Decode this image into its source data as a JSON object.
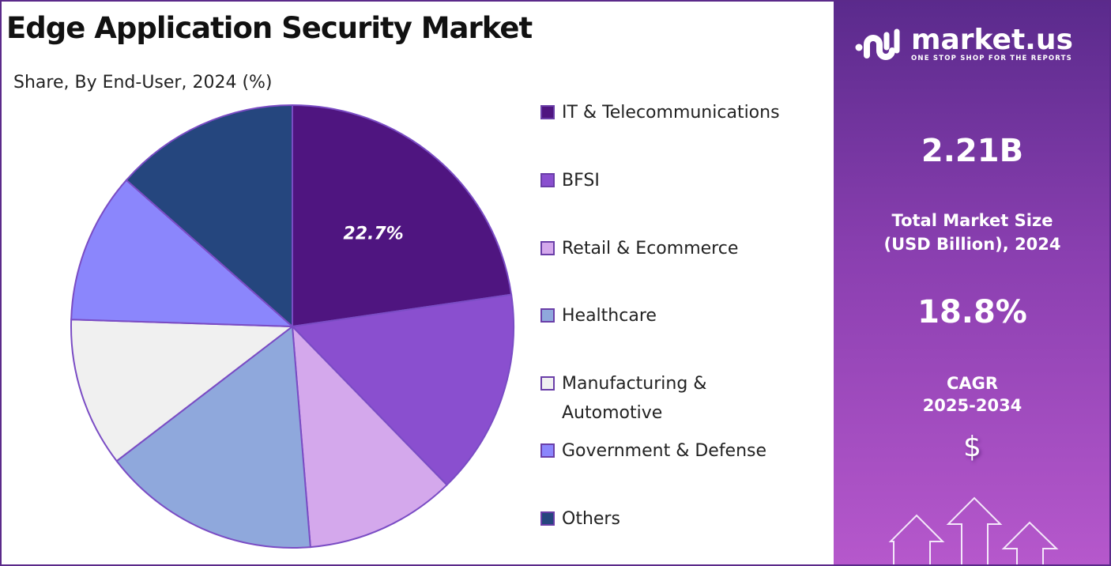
{
  "title": "Edge Application Security Market",
  "chart_data": {
    "type": "pie",
    "title": "Edge Application Security Market",
    "subtitle": "Share, By End-User, 2024 (%)",
    "categories": [
      "IT & Telecommunications",
      "BFSI",
      "Retail & Ecommerce",
      "Healthcare",
      "Manufacturing & Automotive",
      "Government & Defense",
      "Others"
    ],
    "legend_labels": [
      [
        "IT & Telecommunications"
      ],
      [
        "BFSI"
      ],
      [
        "Retail & Ecommerce"
      ],
      [
        "Healthcare"
      ],
      [
        "Manufacturing &",
        "Automotive"
      ],
      [
        "Government & Defense"
      ],
      [
        "Others"
      ]
    ],
    "values": [
      22.7,
      15.0,
      11.0,
      15.9,
      10.9,
      11.0,
      13.5
    ],
    "data_labels": [
      "22.7%",
      "",
      "",
      "",
      "",
      "",
      ""
    ],
    "colors": [
      "#4f1580",
      "#8a4fcf",
      "#d4a8ec",
      "#8fa8dc",
      "#f0f0f0",
      "#8b86fc",
      "#25467e"
    ],
    "legend_position": "right"
  },
  "panel": {
    "logo_name": "market.us",
    "logo_tagline": "ONE STOP SHOP FOR THE REPORTS",
    "market_size": "2.21B",
    "market_size_label_1": "Total Market Size",
    "market_size_label_2": "(USD Billion), 2024",
    "cagr": "18.8%",
    "cagr_label_1": "CAGR",
    "cagr_label_2": "2025-2034",
    "dollar_icon": "$"
  }
}
